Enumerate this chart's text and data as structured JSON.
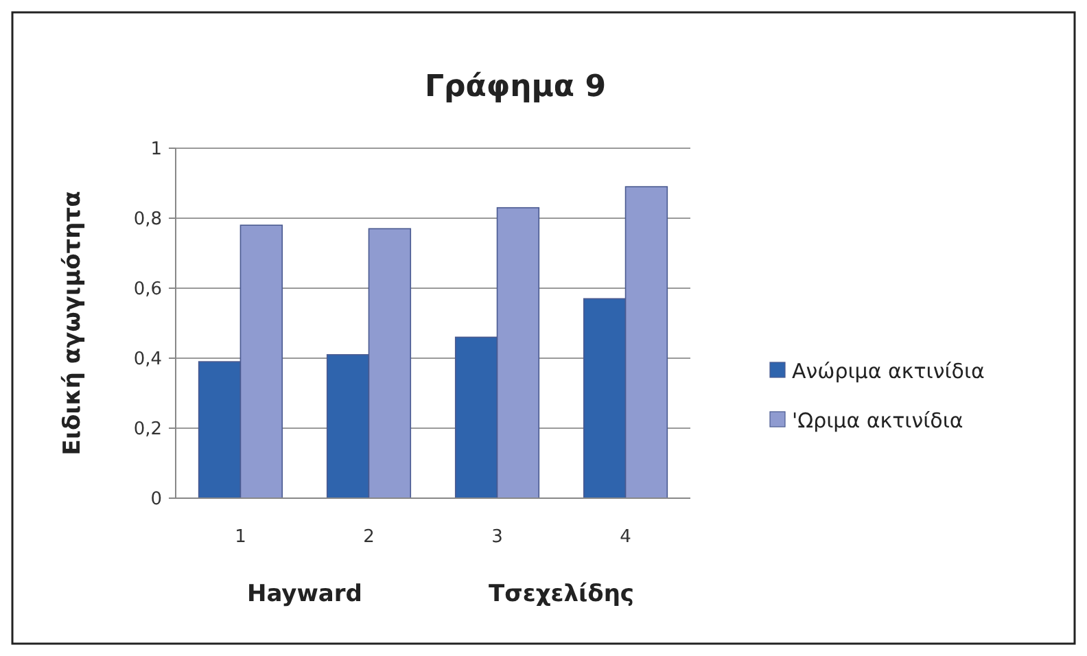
{
  "chart_data": {
    "type": "bar",
    "title": "Γράφημα 9",
    "ylabel": "Ειδική αγωγιμότητα",
    "categories": [
      "1",
      "2",
      "3",
      "4"
    ],
    "series": [
      {
        "name": "Ανώριμα ακτινίδια",
        "color": "#2f64ad",
        "values": [
          0.39,
          0.41,
          0.46,
          0.57
        ]
      },
      {
        "name": "'Ωριμα ακτινίδια",
        "color": "#8f9bd0",
        "values": [
          0.78,
          0.77,
          0.83,
          0.89
        ]
      }
    ],
    "ylim": [
      0,
      1
    ],
    "yticks": [
      {
        "value": 0,
        "label": "0"
      },
      {
        "value": 0.2,
        "label": "0,2"
      },
      {
        "value": 0.4,
        "label": "0,4"
      },
      {
        "value": 0.6,
        "label": "0,6"
      },
      {
        "value": 0.8,
        "label": "0,8"
      },
      {
        "value": 1,
        "label": "1"
      }
    ],
    "grid": "y",
    "legend": "right",
    "annotations": [
      "Hayward",
      "Τσεχελίδης"
    ]
  }
}
